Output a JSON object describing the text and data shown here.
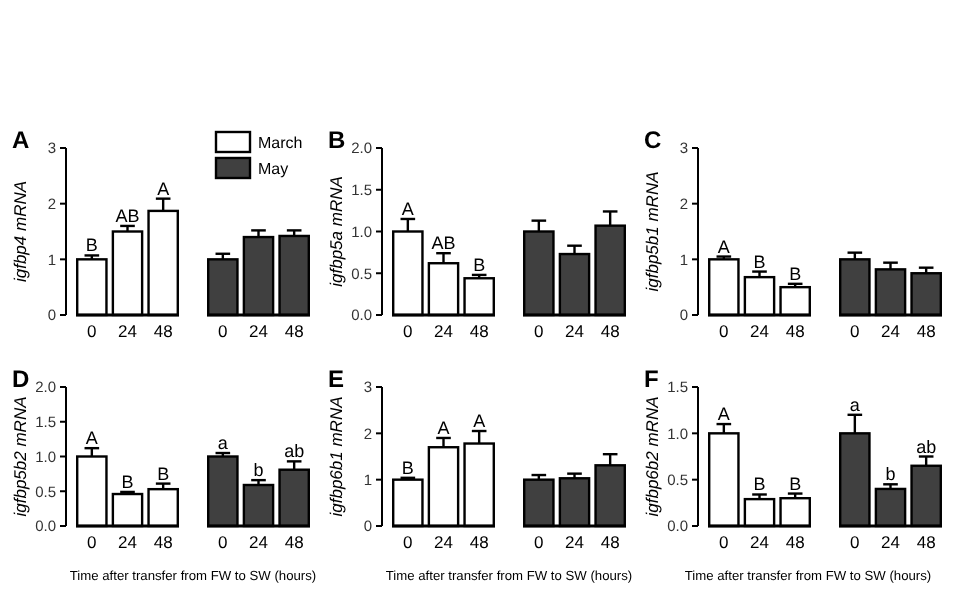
{
  "chart_data": [
    {
      "type": "bar",
      "title": "A",
      "ylabel": "igfbp4 mRNA",
      "categories": [
        "0",
        "24",
        "48",
        "0",
        "24",
        "48"
      ],
      "ylim": [
        0,
        3
      ],
      "yticks": [
        0,
        1,
        2,
        3
      ],
      "legend": "top right",
      "grid": false,
      "series": [
        {
          "name": "March",
          "color": "#ffffff",
          "values": [
            1.0,
            1.5,
            1.87,
            null,
            null,
            null
          ],
          "errors": [
            0.07,
            0.1,
            0.22,
            null,
            null,
            null
          ],
          "value_labels": [
            "B",
            "AB",
            "A",
            null,
            null,
            null
          ]
        },
        {
          "name": "May",
          "color": "#404040",
          "values": [
            null,
            null,
            null,
            1.0,
            1.4,
            1.42
          ],
          "errors": [
            null,
            null,
            null,
            0.1,
            0.12,
            0.1
          ]
        }
      ]
    },
    {
      "type": "bar",
      "title": "B",
      "ylabel": "igfbp5a mRNA",
      "categories": [
        "0",
        "24",
        "48",
        "0",
        "24",
        "48"
      ],
      "ylim": [
        0,
        2
      ],
      "yticks": [
        {
          "value": 0,
          "label": "0.0"
        },
        0.5,
        {
          "value": 1,
          "label": "1.0"
        },
        1.5,
        {
          "value": 2,
          "label": "2.0"
        }
      ],
      "grid": false,
      "series": [
        {
          "color": "#ffffff",
          "values": [
            1.0,
            0.62,
            0.44,
            null,
            null,
            null
          ],
          "errors": [
            0.15,
            0.12,
            0.04,
            null,
            null,
            null
          ],
          "value_labels": [
            "A",
            "AB",
            "B",
            null,
            null,
            null
          ]
        },
        {
          "color": "#404040",
          "values": [
            null,
            null,
            null,
            1.0,
            0.73,
            1.07
          ],
          "errors": [
            null,
            null,
            null,
            0.13,
            0.1,
            0.17
          ]
        }
      ]
    },
    {
      "type": "bar",
      "title": "C",
      "ylabel": "igfbp5b1 mRNA",
      "categories": [
        "0",
        "24",
        "48",
        "0",
        "24",
        "48"
      ],
      "ylim": [
        0,
        3
      ],
      "yticks": [
        0,
        1,
        2,
        3
      ],
      "grid": false,
      "series": [
        {
          "color": "#ffffff",
          "values": [
            1.0,
            0.68,
            0.5,
            null,
            null,
            null
          ],
          "errors": [
            0.05,
            0.1,
            0.06,
            null,
            null,
            null
          ],
          "value_labels": [
            "A",
            "B",
            "B",
            null,
            null,
            null
          ]
        },
        {
          "color": "#404040",
          "values": [
            null,
            null,
            null,
            1.0,
            0.82,
            0.75
          ],
          "errors": [
            null,
            null,
            null,
            0.12,
            0.12,
            0.1
          ]
        }
      ]
    },
    {
      "type": "bar",
      "title": "D",
      "ylabel": "igfbp5b2 mRNA",
      "xlabel": "Time after transfer from FW to SW (hours)",
      "categories": [
        "0",
        "24",
        "48",
        "0",
        "24",
        "48"
      ],
      "ylim": [
        0,
        2
      ],
      "yticks": [
        {
          "value": 0,
          "label": "0.0"
        },
        0.5,
        {
          "value": 1,
          "label": "1.0"
        },
        1.5,
        {
          "value": 2,
          "label": "2.0"
        }
      ],
      "grid": false,
      "series": [
        {
          "color": "#ffffff",
          "values": [
            1.0,
            0.46,
            0.53,
            null,
            null,
            null
          ],
          "errors": [
            0.12,
            0.03,
            0.08,
            null,
            null,
            null
          ],
          "value_labels": [
            "A",
            "B",
            "B",
            null,
            null,
            null
          ]
        },
        {
          "color": "#404040",
          "values": [
            null,
            null,
            null,
            1.0,
            0.59,
            0.81
          ],
          "errors": [
            null,
            null,
            null,
            0.05,
            0.07,
            0.12
          ],
          "value_labels": [
            null,
            null,
            null,
            "a",
            "b",
            "ab"
          ]
        }
      ]
    },
    {
      "type": "bar",
      "title": "E",
      "ylabel": "igfbp6b1 mRNA",
      "xlabel": "Time after transfer from FW to SW (hours)",
      "categories": [
        "0",
        "24",
        "48",
        "0",
        "24",
        "48"
      ],
      "ylim": [
        0,
        3
      ],
      "yticks": [
        0,
        1,
        2,
        3
      ],
      "grid": false,
      "series": [
        {
          "color": "#ffffff",
          "values": [
            1.0,
            1.7,
            1.78,
            null,
            null,
            null
          ],
          "errors": [
            0.04,
            0.2,
            0.27,
            null,
            null,
            null
          ],
          "value_labels": [
            "B",
            "A",
            "A",
            null,
            null,
            null
          ]
        },
        {
          "color": "#404040",
          "values": [
            null,
            null,
            null,
            1.0,
            1.03,
            1.31
          ],
          "errors": [
            null,
            null,
            null,
            0.1,
            0.1,
            0.24
          ]
        }
      ]
    },
    {
      "type": "bar",
      "title": "F",
      "ylabel": "igfbp6b2 mRNA",
      "xlabel": "Time after transfer from FW to SW (hours)",
      "categories": [
        "0",
        "24",
        "48",
        "0",
        "24",
        "48"
      ],
      "ylim": [
        0,
        1.5
      ],
      "yticks": [
        {
          "value": 0,
          "label": "0.0"
        },
        0.5,
        {
          "value": 1,
          "label": "1.0"
        },
        1.5
      ],
      "grid": false,
      "series": [
        {
          "color": "#ffffff",
          "values": [
            1.0,
            0.29,
            0.3,
            null,
            null,
            null
          ],
          "errors": [
            0.1,
            0.05,
            0.05,
            null,
            null,
            null
          ],
          "value_labels": [
            "A",
            "B",
            "B",
            null,
            null,
            null
          ]
        },
        {
          "color": "#404040",
          "values": [
            null,
            null,
            null,
            1.0,
            0.4,
            0.65
          ],
          "errors": [
            null,
            null,
            null,
            0.2,
            0.05,
            0.1
          ],
          "value_labels": [
            null,
            null,
            null,
            "a",
            "b",
            "ab"
          ]
        }
      ]
    }
  ]
}
